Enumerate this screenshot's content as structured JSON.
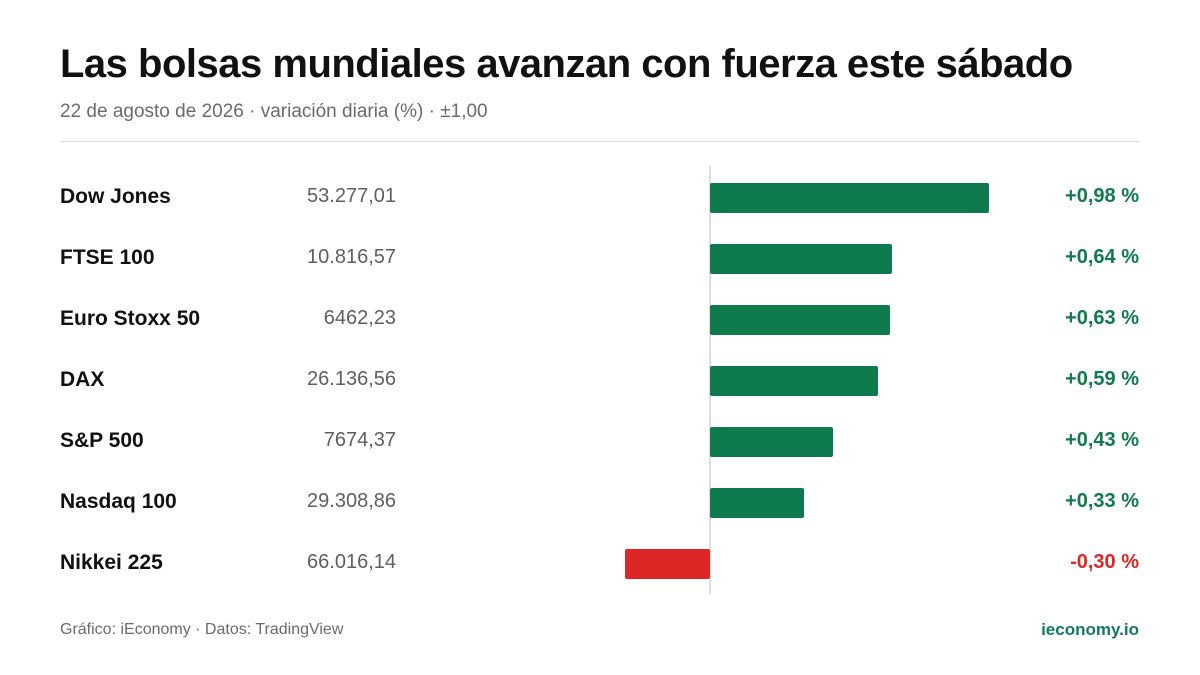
{
  "header": {
    "title": "Las bolsas mundiales avanzan con fuerza este sábado",
    "subtitle": "22 de agosto de 2026 · variación diaria (%) · ±1,00"
  },
  "chart_data": {
    "type": "bar",
    "orientation": "horizontal",
    "title": "Las bolsas mundiales avanzan con fuerza este sábado",
    "subtitle": "22 de agosto de 2026 · variación diaria (%) · ±1,00",
    "xlim": [
      -1.0,
      1.0
    ],
    "grid": false,
    "categories": [
      "Dow Jones",
      "FTSE 100",
      "Euro Stoxx 50",
      "DAX",
      "S&P 500",
      "Nasdaq 100",
      "Nikkei 225"
    ],
    "prices": [
      "53.277,01",
      "10.816,57",
      "6462,23",
      "26.136,56",
      "7674,37",
      "29.308,86",
      "66.016,14"
    ],
    "values": [
      0.98,
      0.64,
      0.63,
      0.59,
      0.43,
      0.33,
      -0.3
    ],
    "value_labels": [
      "+0,98 %",
      "+0,64 %",
      "+0,63 %",
      "+0,59 %",
      "+0,43 %",
      "+0,33 %",
      "-0,30 %"
    ],
    "colors": {
      "positive": "#0f7a4e",
      "negative": "#dd2626"
    }
  },
  "footer": {
    "source": "Gráfico: iEconomy · Datos: TradingView",
    "brand": "ieconomy.io"
  }
}
